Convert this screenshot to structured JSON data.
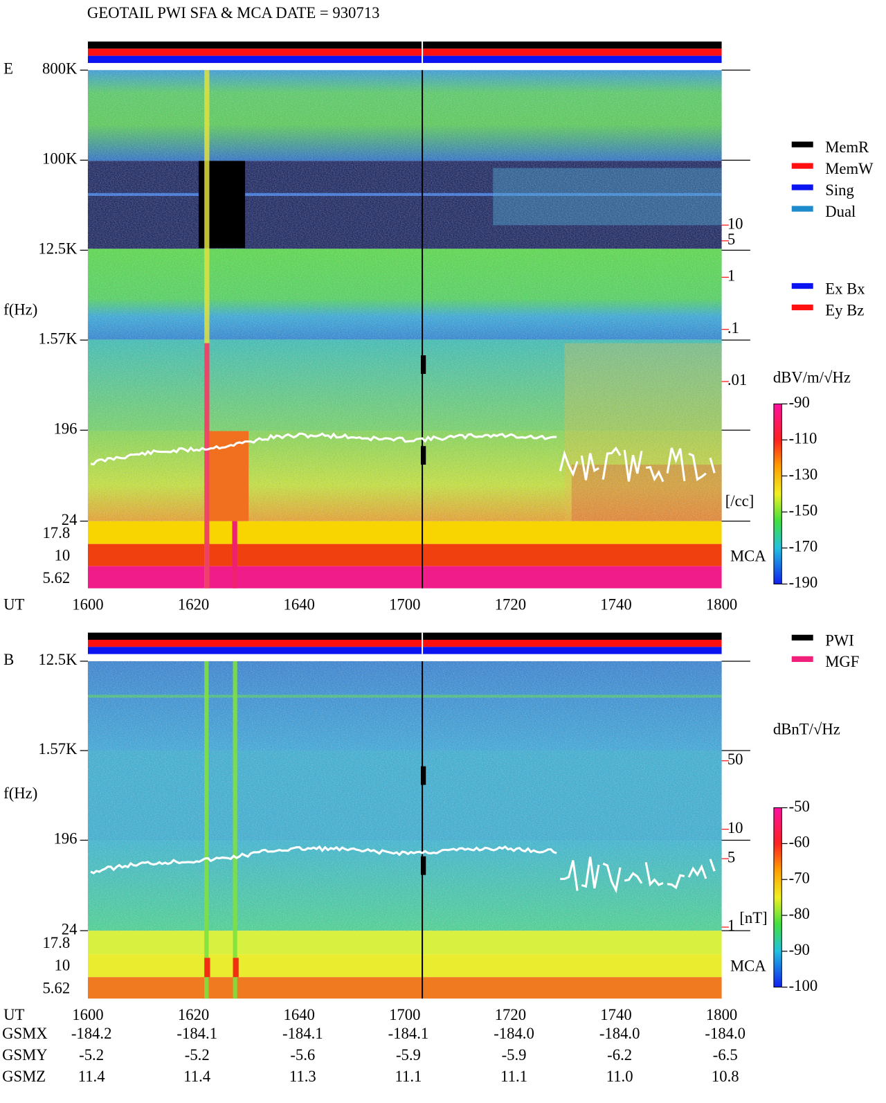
{
  "header": {
    "title": "GEOTAIL  PWI SFA & MCA   DATE = 930713"
  },
  "panels": [
    {
      "label": "E",
      "y_label": "f(Hz)",
      "freq_lim": [
        24,
        800000
      ],
      "freq_ticks": [
        {
          "value": 800000,
          "label": "800K"
        },
        {
          "value": 100000,
          "label": "100K"
        },
        {
          "value": 12500,
          "label": "12.5K"
        },
        {
          "value": 1570,
          "label": "1.57K"
        },
        196,
        24
      ],
      "mca_label": "MCA",
      "mca_ticks": [
        17.8,
        10,
        5.62
      ],
      "right_axis": {
        "lim": [
          2.1e-05,
          9400
        ],
        "ticks": [
          10,
          5,
          1,
          {
            "value": 0.1,
            "label": ".1"
          },
          {
            "value": 0.01,
            "label": ".01"
          }
        ],
        "unit": "[/cc]"
      },
      "colorbar": {
        "unit": "dBV/m/√Hz",
        "lim": [
          -190,
          -90
        ],
        "ticks": [
          -90,
          -110,
          -130,
          -150,
          -170,
          -190
        ]
      },
      "x_label": "UT",
      "x_ticks": [
        "1600",
        "1620",
        "1640",
        "1700",
        "1720",
        "1740",
        "1800"
      ],
      "legends": [
        [
          {
            "name": "MemR",
            "color": "#000000"
          },
          {
            "name": "MemW",
            "color": "#ff1010"
          },
          {
            "name": "Sing",
            "color": "#0a14f0"
          },
          {
            "name": "Dual",
            "color": "#1e8ccc"
          }
        ],
        [
          {
            "name": "Ex Bx",
            "color": "#0a14f0"
          },
          {
            "name": "Ey Bz",
            "color": "#ff1010"
          }
        ]
      ]
    },
    {
      "label": "B",
      "y_label": "f(Hz)",
      "freq_lim": [
        24,
        12500
      ],
      "freq_ticks": [
        {
          "value": 12500,
          "label": "12.5K"
        },
        {
          "value": 1570,
          "label": "1.57K"
        },
        196,
        24
      ],
      "mca_label": "MCA",
      "mca_ticks": [
        17.8,
        10,
        5.62
      ],
      "right_axis": {
        "lim": [
          0.92,
          520
        ],
        "ticks": [
          50,
          10,
          5,
          1
        ],
        "unit": "[nT]"
      },
      "colorbar": {
        "unit": "dBnT/√Hz",
        "lim": [
          -100,
          -50
        ],
        "ticks": [
          -50,
          -60,
          -70,
          -80,
          -90,
          -100
        ]
      },
      "x_label": "UT",
      "x_ticks": [
        "1600",
        "1620",
        "1640",
        "1700",
        "1720",
        "1740",
        "1800"
      ],
      "legends": [
        [
          {
            "name": "PWI",
            "color": "#000000"
          },
          {
            "name": "MGF",
            "color": "#f0207a"
          }
        ]
      ]
    }
  ],
  "orbit": {
    "rows": [
      {
        "label": "GSMX",
        "values": [
          "-184.2",
          "-184.1",
          "-184.1",
          "-184.1",
          "-184.0",
          "-184.0",
          "-184.0"
        ]
      },
      {
        "label": "GSMY",
        "values": [
          "-5.2",
          "-5.2",
          "-5.6",
          "-5.9",
          "-5.9",
          "-6.2",
          "-6.5"
        ]
      },
      {
        "label": "GSMZ",
        "values": [
          "11.4",
          "11.4",
          "11.3",
          "11.1",
          "11.1",
          "11.0",
          "10.8"
        ]
      }
    ]
  }
}
